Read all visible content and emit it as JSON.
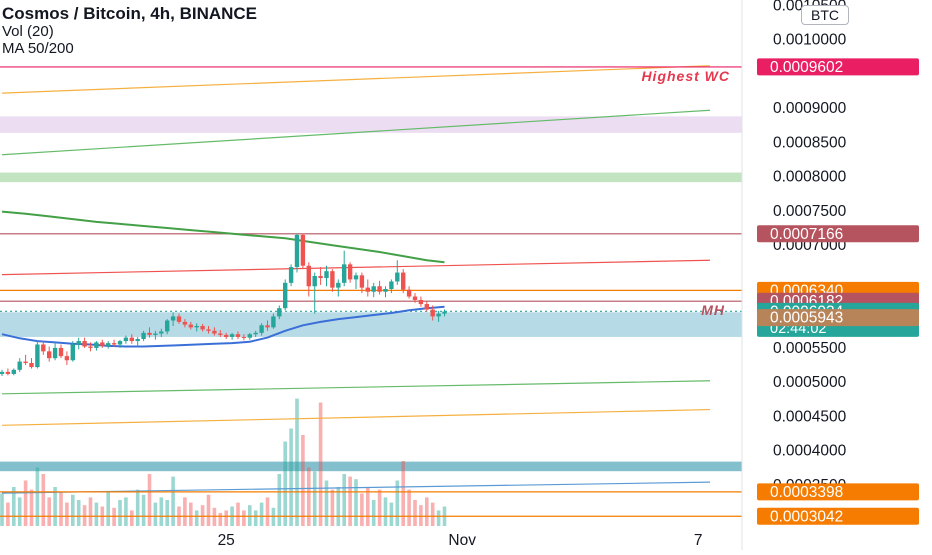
{
  "header": {
    "title": "Cosmos / Bitcoin, 4h, BINANCE",
    "indicator_vol": "Vol (20)",
    "indicator_ma": "MA 50/200",
    "currency_badge": "BTC"
  },
  "colors": {
    "up": "#26a69a",
    "down": "#ef5350",
    "ma50": "#3b6fd8",
    "ma200": "#43a047",
    "axis_text": "#131722",
    "zone_purple": "#e9d7f0",
    "zone_green": "#b9dfb5",
    "zone_blue": "#a9d3e2",
    "zone_teal": "#6fb4c4"
  },
  "chart_data": {
    "type": "candlestick",
    "title": "Cosmos / Bitcoin, 4h, BINANCE",
    "ylim": [
      0.00029,
      0.001055
    ],
    "y_ticks": [
      "0.0010500",
      "0.0010000",
      "0.0009000",
      "0.0008500",
      "0.0008000",
      "0.0007500",
      "0.0007000",
      "0.0005500",
      "0.0005000",
      "0.0004500",
      "0.0004000",
      "0.0003500"
    ],
    "x_ticks": [
      "25",
      "Nov",
      "7"
    ],
    "x_tick_index": [
      38,
      78,
      118
    ],
    "n_slots": 124,
    "candles": [
      [
        0.000512,
        0.000518,
        0.000509,
        0.000515
      ],
      [
        0.000515,
        0.00052,
        0.00051,
        0.000512
      ],
      [
        0.000512,
        0.00052,
        0.00051,
        0.000518
      ],
      [
        0.000518,
        0.000535,
        0.000515,
        0.00053
      ],
      [
        0.00053,
        0.00054,
        0.000525,
        0.000528
      ],
      [
        0.000528,
        0.000535,
        0.00052,
        0.000522
      ],
      [
        0.000522,
        0.00056,
        0.00052,
        0.000555
      ],
      [
        0.000555,
        0.00056,
        0.00054,
        0.000545
      ],
      [
        0.000545,
        0.000552,
        0.00053,
        0.000535
      ],
      [
        0.000535,
        0.000558,
        0.000532,
        0.00055
      ],
      [
        0.00055,
        0.000555,
        0.000535,
        0.000538
      ],
      [
        0.000538,
        0.000545,
        0.000525,
        0.000532
      ],
      [
        0.000532,
        0.00056,
        0.00053,
        0.000555
      ],
      [
        0.000555,
        0.000565,
        0.000548,
        0.00056
      ],
      [
        0.00056,
        0.000565,
        0.00055,
        0.000552
      ],
      [
        0.000552,
        0.000558,
        0.000545,
        0.00055
      ],
      [
        0.00055,
        0.00056,
        0.000546,
        0.000558
      ],
      [
        0.000558,
        0.000562,
        0.00055,
        0.000553
      ],
      [
        0.000553,
        0.00056,
        0.000549,
        0.000557
      ],
      [
        0.000557,
        0.000562,
        0.000552,
        0.000555
      ],
      [
        0.000555,
        0.000562,
        0.00055,
        0.00056
      ],
      [
        0.00056,
        0.000568,
        0.000556,
        0.000565
      ],
      [
        0.000565,
        0.00057,
        0.000556,
        0.00056
      ],
      [
        0.00056,
        0.000566,
        0.000552,
        0.000563
      ],
      [
        0.000563,
        0.000575,
        0.00056,
        0.000572
      ],
      [
        0.000572,
        0.00058,
        0.000565,
        0.000569
      ],
      [
        0.000569,
        0.000575,
        0.000562,
        0.000571
      ],
      [
        0.000571,
        0.000578,
        0.000566,
        0.000574
      ],
      [
        0.000574,
        0.000592,
        0.00057,
        0.00059
      ],
      [
        0.00059,
        0.000602,
        0.000582,
        0.000596
      ],
      [
        0.000596,
        0.0006,
        0.000585,
        0.000588
      ],
      [
        0.000588,
        0.000592,
        0.00058,
        0.000584
      ],
      [
        0.000584,
        0.000588,
        0.000577,
        0.00058
      ],
      [
        0.00058,
        0.000586,
        0.000574,
        0.000582
      ],
      [
        0.000582,
        0.000585,
        0.000574,
        0.000577
      ],
      [
        0.000577,
        0.000582,
        0.000571,
        0.000575
      ],
      [
        0.000575,
        0.00058,
        0.000568,
        0.000571
      ],
      [
        0.000571,
        0.000576,
        0.000566,
        0.000569
      ],
      [
        0.000569,
        0.000572,
        0.000563,
        0.000566
      ],
      [
        0.000566,
        0.000572,
        0.000562,
        0.00057
      ],
      [
        0.00057,
        0.000574,
        0.000563,
        0.000566
      ],
      [
        0.000566,
        0.00057,
        0.000561,
        0.000565
      ],
      [
        0.000565,
        0.000572,
        0.000562,
        0.00057
      ],
      [
        0.00057,
        0.000575,
        0.000566,
        0.000572
      ],
      [
        0.000572,
        0.000586,
        0.000568,
        0.000583
      ],
      [
        0.000583,
        0.00059,
        0.000575,
        0.00058
      ],
      [
        0.00058,
        0.0006,
        0.000578,
        0.000596
      ],
      [
        0.000596,
        0.000612,
        0.000592,
        0.000608
      ],
      [
        0.000608,
        0.00065,
        0.000605,
        0.000645
      ],
      [
        0.000645,
        0.000672,
        0.00064,
        0.000668
      ],
      [
        0.000668,
        0.000717,
        0.00066,
        0.000715
      ],
      [
        0.000715,
        0.000717,
        0.000665,
        0.00067
      ],
      [
        0.00067,
        0.000675,
        0.000625,
        0.00064
      ],
      [
        0.00064,
        0.00066,
        0.0006,
        0.000655
      ],
      [
        0.000655,
        0.000668,
        0.000642,
        0.000652
      ],
      [
        0.000652,
        0.00067,
        0.00064,
        0.000662
      ],
      [
        0.000662,
        0.000665,
        0.000632,
        0.000638
      ],
      [
        0.000638,
        0.00065,
        0.000625,
        0.000645
      ],
      [
        0.000645,
        0.000692,
        0.00064,
        0.000672
      ],
      [
        0.000672,
        0.000675,
        0.000645,
        0.00065
      ],
      [
        0.00065,
        0.00066,
        0.000636,
        0.000656
      ],
      [
        0.000656,
        0.00066,
        0.00063,
        0.000638
      ],
      [
        0.000638,
        0.00065,
        0.000625,
        0.000632
      ],
      [
        0.000632,
        0.000645,
        0.000624,
        0.00064
      ],
      [
        0.00064,
        0.000648,
        0.000628,
        0.000632
      ],
      [
        0.000632,
        0.00064,
        0.000624,
        0.000636
      ],
      [
        0.000636,
        0.00065,
        0.00063,
        0.000647
      ],
      [
        0.000647,
        0.000678,
        0.000642,
        0.00066
      ],
      [
        0.00066,
        0.000665,
        0.00063,
        0.000635
      ],
      [
        0.000635,
        0.00064,
        0.000622,
        0.000625
      ],
      [
        0.000625,
        0.00063,
        0.000616,
        0.00062
      ],
      [
        0.00062,
        0.000625,
        0.00061,
        0.000614
      ],
      [
        0.000614,
        0.000618,
        0.000603,
        0.000606
      ],
      [
        0.000606,
        0.000612,
        0.00059,
        0.000596
      ],
      [
        0.000596,
        0.000604,
        0.000588,
        0.0006
      ],
      [
        0.0006,
        0.000606,
        0.000596,
        0.000603
      ]
    ],
    "volume": {
      "scale_max": 100,
      "values": [
        25,
        18,
        30,
        22,
        35,
        28,
        45,
        40,
        22,
        30,
        26,
        18,
        24,
        20,
        16,
        22,
        18,
        15,
        26,
        14,
        20,
        22,
        12,
        28,
        24,
        40,
        18,
        22,
        20,
        38,
        15,
        22,
        18,
        12,
        16,
        24,
        14,
        10,
        12,
        15,
        18,
        12,
        16,
        12,
        18,
        22,
        14,
        40,
        65,
        75,
        98,
        70,
        45,
        42,
        95,
        35,
        28,
        30,
        40,
        38,
        36,
        25,
        30,
        20,
        28,
        22,
        18,
        35,
        50,
        28,
        20,
        16,
        22,
        18,
        12,
        15
      ]
    },
    "ma50": [
      [
        0,
        0.00057
      ],
      [
        3,
        0.000564
      ],
      [
        6,
        0.00056
      ],
      [
        9,
        0.000558
      ],
      [
        12,
        0.000556
      ],
      [
        15,
        0.000555
      ],
      [
        18,
        0.000553
      ],
      [
        21,
        0.000552
      ],
      [
        24,
        0.000552
      ],
      [
        27,
        0.000553
      ],
      [
        30,
        0.000554
      ],
      [
        33,
        0.000555
      ],
      [
        36,
        0.000556
      ],
      [
        39,
        0.000557
      ],
      [
        42,
        0.000559
      ],
      [
        45,
        0.000565
      ],
      [
        48,
        0.000575
      ],
      [
        51,
        0.000583
      ],
      [
        54,
        0.000588
      ],
      [
        57,
        0.000592
      ],
      [
        60,
        0.000595
      ],
      [
        63,
        0.000598
      ],
      [
        66,
        0.000601
      ],
      [
        69,
        0.000605
      ],
      [
        72,
        0.000608
      ],
      [
        75,
        0.00061
      ]
    ],
    "ma200": [
      [
        0,
        0.000749
      ],
      [
        4,
        0.000746
      ],
      [
        8,
        0.000742
      ],
      [
        12,
        0.000738
      ],
      [
        16,
        0.000734
      ],
      [
        20,
        0.000731
      ],
      [
        24,
        0.000728
      ],
      [
        28,
        0.000725
      ],
      [
        32,
        0.000722
      ],
      [
        36,
        0.000719
      ],
      [
        40,
        0.000716
      ],
      [
        44,
        0.000713
      ],
      [
        48,
        0.00071
      ],
      [
        52,
        0.000705
      ],
      [
        56,
        0.0007
      ],
      [
        60,
        0.000695
      ],
      [
        64,
        0.00069
      ],
      [
        68,
        0.000684
      ],
      [
        72,
        0.000678
      ],
      [
        75,
        0.000675
      ]
    ],
    "horizontal_lines": [
      {
        "value": 0.0009602,
        "color": "#e91e63"
      },
      {
        "value": 0.0007166,
        "color": "#b5535f"
      },
      {
        "value": 0.000634,
        "color": "#f57c00"
      },
      {
        "value": 0.0006182,
        "color": "#b5535f"
      },
      {
        "value": 0.0006034,
        "color": "#26a69a",
        "dashed": true
      },
      {
        "value": 0.0003398,
        "color": "#f57c00"
      },
      {
        "value": 0.0003042,
        "color": "#f57c00"
      }
    ],
    "trend_lines": [
      {
        "from": [
          0,
          0.000922
        ],
        "to": [
          120,
          0.000962
        ],
        "color": "#f5b041"
      },
      {
        "from": [
          0,
          0.000832
        ],
        "to": [
          120,
          0.000897
        ],
        "color": "#66bb6a"
      },
      {
        "from": [
          0,
          0.000657
        ],
        "to": [
          120,
          0.000678
        ],
        "color": "#ef5350"
      },
      {
        "from": [
          0,
          0.000483
        ],
        "to": [
          120,
          0.000502
        ],
        "color": "#66bb6a"
      },
      {
        "from": [
          0,
          0.000437
        ],
        "to": [
          120,
          0.00046
        ],
        "color": "#f5b041"
      },
      {
        "from": [
          0,
          0.000338
        ],
        "to": [
          120,
          0.000354
        ],
        "color": "#5b9bd5"
      }
    ],
    "zones": [
      {
        "from": 0.000864,
        "to": 0.000888,
        "color": "#e9d7f0"
      },
      {
        "from": 0.000792,
        "to": 0.000806,
        "color": "#b9dfb5"
      },
      {
        "from": 0.000566,
        "to": 0.000602,
        "color": "#a9d3e2"
      },
      {
        "from": 0.00037,
        "to": 0.000384,
        "color": "#6fb4c4"
      }
    ],
    "annotations": [
      {
        "text": "Highest WC",
        "value": 0.0009602,
        "color": "#e53950"
      },
      {
        "text": "MH",
        "value": 0.0006182,
        "color": "#b5535f"
      }
    ],
    "price_tags": [
      {
        "text": "0.0009602",
        "value": 0.0009602,
        "bg": "#e91e63"
      },
      {
        "text": "0.0007166",
        "value": 0.0007166,
        "bg": "#b5535f"
      },
      {
        "text": "0.0006340",
        "value": 0.000634,
        "bg": "#f57c00"
      },
      {
        "text": "0.0006182",
        "value": 0.0006182,
        "bg": "#b5535f"
      },
      {
        "text": "0.0006034",
        "subtext": "02:44:02",
        "value": 0.0006034,
        "bg": "#26a69a"
      },
      {
        "text": "0.0005943",
        "value": 0.0005943,
        "bg": "#b7845a"
      },
      {
        "text": "0.0003398",
        "value": 0.0003398,
        "bg": "#f57c00"
      },
      {
        "text": "0.0003042",
        "value": 0.0003042,
        "bg": "#f57c00"
      }
    ]
  }
}
